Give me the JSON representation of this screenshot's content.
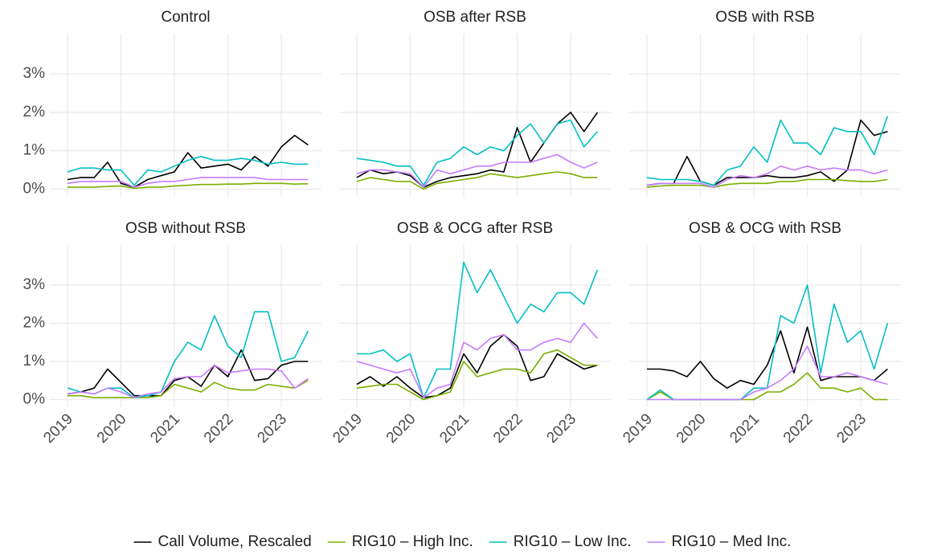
{
  "chart_data": {
    "type": "line",
    "x": [
      2019,
      2019.25,
      2019.5,
      2019.75,
      2020,
      2020.25,
      2020.5,
      2020.75,
      2021,
      2021.25,
      2021.5,
      2021.75,
      2022,
      2022.25,
      2022.5,
      2022.75,
      2023,
      2023.25,
      2023.5
    ],
    "xlim": [
      2018.67,
      2023.75
    ],
    "xticks": [
      2019,
      2020,
      2021,
      2022,
      2023
    ],
    "ylim": [
      -0.2,
      4.05
    ],
    "yticks": [
      {
        "value": 0,
        "label": "0%"
      },
      {
        "value": 1,
        "label": "1%"
      },
      {
        "value": 2,
        "label": "2%"
      },
      {
        "value": 3,
        "label": "3%"
      }
    ],
    "grid": true,
    "series": [
      {
        "name": "Call Volume, Rescaled",
        "color": "#000000"
      },
      {
        "name": "RIG10 – High Inc.",
        "color": "#7cae00"
      },
      {
        "name": "RIG10 – Low Inc.",
        "color": "#00bfc4"
      },
      {
        "name": "RIG10 – Med Inc.",
        "color": "#c77cff"
      }
    ],
    "facets": [
      {
        "title": "Control",
        "values": [
          [
            0.25,
            0.3,
            0.3,
            0.7,
            0.15,
            0.05,
            0.25,
            0.35,
            0.45,
            0.95,
            0.55,
            0.6,
            0.65,
            0.5,
            0.85,
            0.6,
            1.1,
            1.4,
            1.15
          ],
          [
            0.05,
            0.05,
            0.05,
            0.07,
            0.08,
            0.02,
            0.05,
            0.05,
            0.08,
            0.1,
            0.12,
            0.12,
            0.13,
            0.13,
            0.15,
            0.15,
            0.15,
            0.13,
            0.14
          ],
          [
            0.45,
            0.55,
            0.55,
            0.5,
            0.5,
            0.1,
            0.5,
            0.45,
            0.6,
            0.75,
            0.85,
            0.75,
            0.75,
            0.8,
            0.75,
            0.65,
            0.7,
            0.65,
            0.65
          ],
          [
            0.15,
            0.2,
            0.2,
            0.2,
            0.2,
            0.05,
            0.15,
            0.2,
            0.2,
            0.25,
            0.3,
            0.3,
            0.3,
            0.3,
            0.3,
            0.25,
            0.25,
            0.25,
            0.25
          ]
        ]
      },
      {
        "title": "OSB after RSB",
        "values": [
          [
            0.3,
            0.5,
            0.4,
            0.45,
            0.35,
            0.05,
            0.2,
            0.3,
            0.35,
            0.4,
            0.5,
            0.45,
            1.6,
            0.7,
            1.2,
            1.7,
            2.0,
            1.5,
            2.0
          ],
          [
            0.2,
            0.3,
            0.25,
            0.2,
            0.2,
            0.0,
            0.15,
            0.2,
            0.25,
            0.3,
            0.4,
            0.35,
            0.3,
            0.35,
            0.4,
            0.45,
            0.4,
            0.3,
            0.3
          ],
          [
            0.8,
            0.75,
            0.7,
            0.6,
            0.6,
            0.1,
            0.7,
            0.8,
            1.1,
            0.9,
            1.1,
            1.0,
            1.4,
            1.7,
            1.2,
            1.7,
            1.8,
            1.1,
            1.5
          ],
          [
            0.4,
            0.5,
            0.5,
            0.45,
            0.4,
            0.05,
            0.5,
            0.4,
            0.5,
            0.6,
            0.6,
            0.7,
            0.7,
            0.7,
            0.8,
            0.9,
            0.7,
            0.55,
            0.7
          ]
        ]
      },
      {
        "title": "OSB with RSB",
        "values": [
          [
            0.1,
            0.15,
            0.15,
            0.85,
            0.2,
            0.1,
            0.3,
            0.3,
            0.3,
            0.35,
            0.3,
            0.3,
            0.35,
            0.45,
            0.2,
            0.5,
            1.8,
            1.4,
            1.5
          ],
          [
            0.05,
            0.08,
            0.1,
            0.1,
            0.1,
            0.05,
            0.12,
            0.15,
            0.15,
            0.15,
            0.2,
            0.2,
            0.25,
            0.25,
            0.25,
            0.22,
            0.2,
            0.2,
            0.25
          ],
          [
            0.3,
            0.25,
            0.25,
            0.25,
            0.2,
            0.1,
            0.5,
            0.6,
            1.1,
            0.7,
            1.8,
            1.2,
            1.2,
            0.9,
            1.6,
            1.5,
            1.5,
            0.9,
            1.9
          ],
          [
            0.1,
            0.15,
            0.15,
            0.15,
            0.15,
            0.05,
            0.25,
            0.35,
            0.3,
            0.4,
            0.6,
            0.5,
            0.6,
            0.5,
            0.55,
            0.5,
            0.5,
            0.4,
            0.5
          ]
        ]
      },
      {
        "title": "OSB without RSB",
        "values": [
          [
            0.15,
            0.2,
            0.3,
            0.8,
            0.45,
            0.1,
            0.1,
            0.1,
            0.5,
            0.6,
            0.35,
            0.9,
            0.6,
            1.3,
            0.5,
            0.55,
            0.9,
            1.0,
            1.0
          ],
          [
            0.1,
            0.1,
            0.05,
            0.05,
            0.05,
            0.05,
            0.05,
            0.1,
            0.4,
            0.3,
            0.2,
            0.45,
            0.3,
            0.25,
            0.25,
            0.4,
            0.35,
            0.3,
            0.5
          ],
          [
            0.3,
            0.2,
            0.15,
            0.3,
            0.3,
            0.05,
            0.1,
            0.2,
            1.0,
            1.5,
            1.3,
            2.2,
            1.4,
            1.1,
            2.3,
            2.3,
            1.0,
            1.1,
            1.8
          ],
          [
            0.15,
            0.2,
            0.15,
            0.3,
            0.2,
            0.05,
            0.15,
            0.2,
            0.55,
            0.6,
            0.6,
            0.9,
            0.7,
            0.75,
            0.8,
            0.8,
            0.75,
            0.3,
            0.55
          ]
        ]
      },
      {
        "title": "OSB & OCG after RSB",
        "values": [
          [
            0.4,
            0.6,
            0.35,
            0.6,
            0.3,
            0.05,
            0.1,
            0.3,
            1.2,
            0.7,
            1.4,
            1.7,
            1.4,
            0.5,
            0.6,
            1.2,
            1.0,
            0.8,
            0.9
          ],
          [
            0.3,
            0.35,
            0.4,
            0.4,
            0.2,
            0.0,
            0.1,
            0.2,
            1.0,
            0.6,
            0.7,
            0.8,
            0.8,
            0.7,
            1.2,
            1.3,
            1.1,
            0.9,
            0.9
          ],
          [
            1.2,
            1.2,
            1.3,
            1.0,
            1.2,
            0.05,
            0.8,
            0.8,
            3.6,
            2.8,
            3.4,
            2.7,
            2.0,
            2.5,
            2.3,
            2.8,
            2.8,
            2.5,
            3.4
          ],
          [
            1.0,
            0.9,
            0.8,
            0.7,
            0.8,
            0.05,
            0.3,
            0.4,
            1.5,
            1.3,
            1.6,
            1.7,
            1.3,
            1.3,
            1.5,
            1.6,
            1.5,
            2.0,
            1.6
          ]
        ]
      },
      {
        "title": "OSB & OCG with RSB",
        "values": [
          [
            0.8,
            0.8,
            0.75,
            0.6,
            1.0,
            0.55,
            0.3,
            0.5,
            0.4,
            0.9,
            1.8,
            0.7,
            1.9,
            0.5,
            0.6,
            0.6,
            0.6,
            0.5,
            0.8
          ],
          [
            0.0,
            0.2,
            0.0,
            0.0,
            0.0,
            0.0,
            0.0,
            0.0,
            0.0,
            0.2,
            0.2,
            0.4,
            0.7,
            0.3,
            0.3,
            0.2,
            0.3,
            0.0,
            0.0
          ],
          [
            0.0,
            0.25,
            0.0,
            0.0,
            0.0,
            0.0,
            0.0,
            0.0,
            0.3,
            0.3,
            2.2,
            2.0,
            3.0,
            0.7,
            2.5,
            1.5,
            1.8,
            0.8,
            2.0
          ],
          [
            0.0,
            0.0,
            0.0,
            0.0,
            0.0,
            0.0,
            0.0,
            0.0,
            0.2,
            0.3,
            0.5,
            0.8,
            1.4,
            0.6,
            0.6,
            0.7,
            0.6,
            0.5,
            0.4
          ]
        ]
      }
    ]
  }
}
